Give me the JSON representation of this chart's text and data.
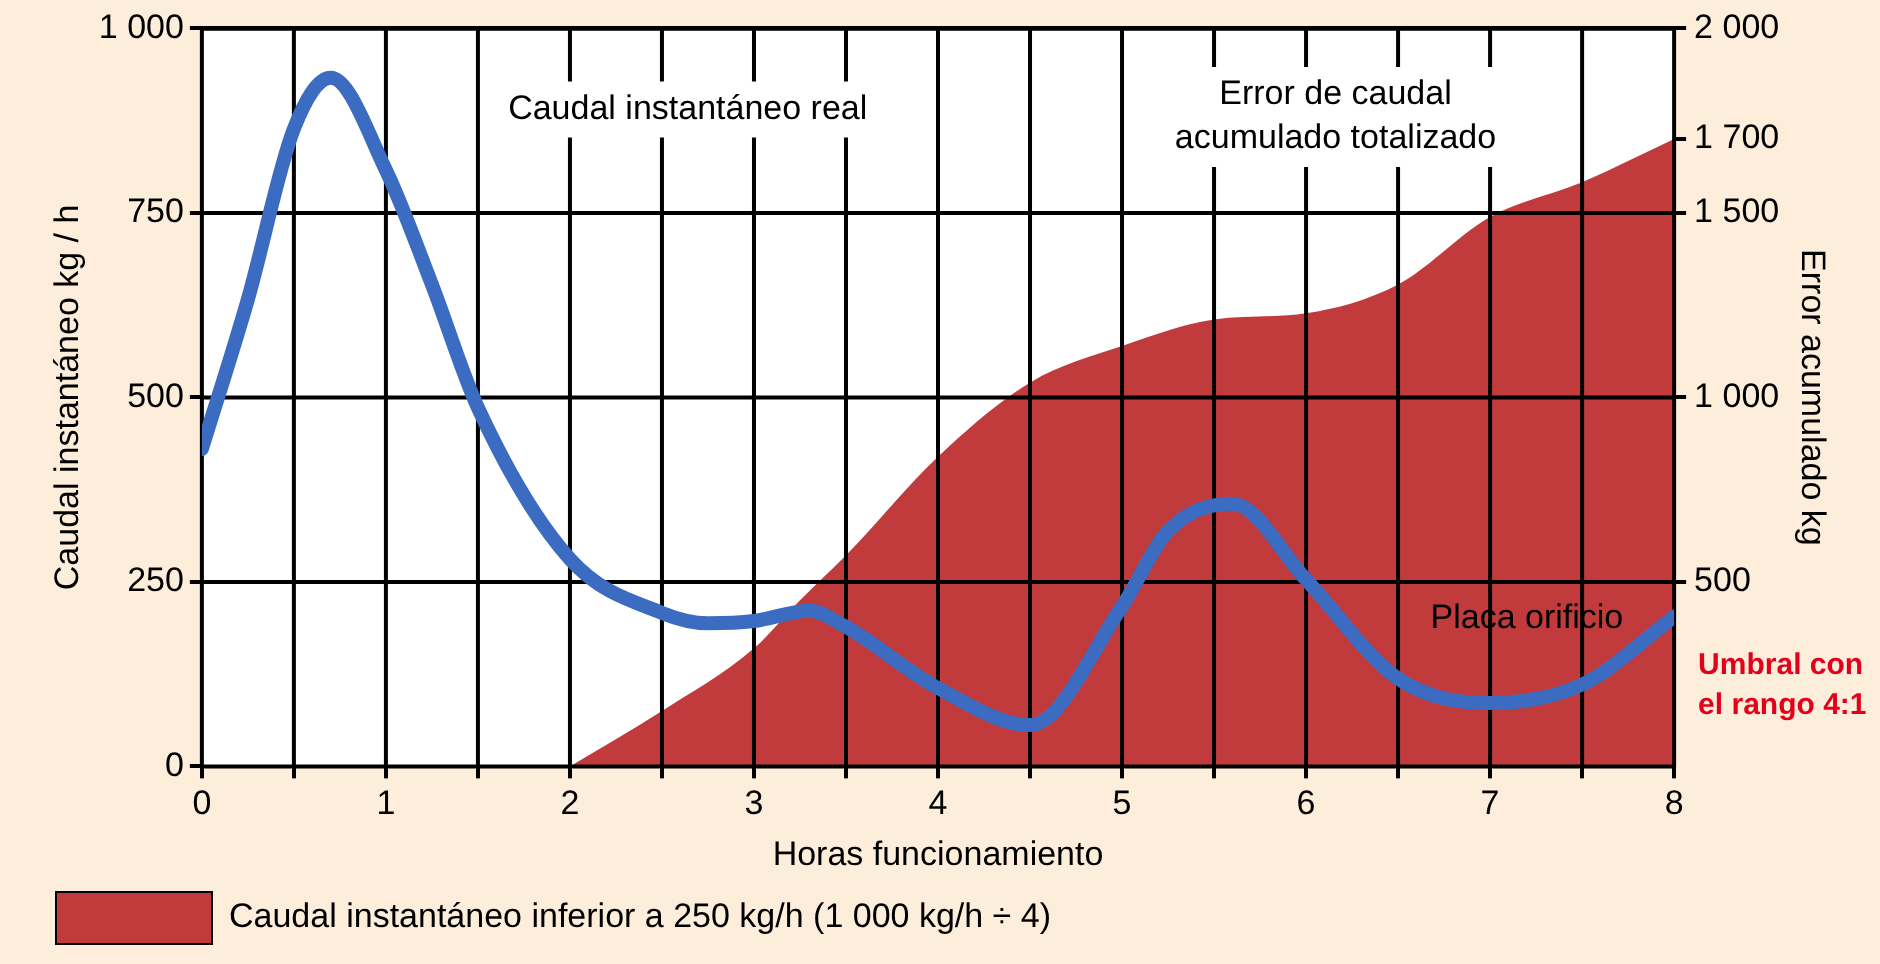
{
  "chart_data": {
    "type": "line",
    "xlabel": "Horas funcionamiento",
    "ylabel": "Caudal instantáneo kg / h",
    "y2label": "Error acumulado kg",
    "xlim": [
      0,
      8
    ],
    "xticks": [
      0,
      {
        "value": 0.5,
        "label": null
      },
      1,
      {
        "value": 1.5,
        "label": null
      },
      2,
      {
        "value": 2.5,
        "label": null
      },
      3,
      {
        "value": 3.5,
        "label": null
      },
      4,
      {
        "value": 4.5,
        "label": null
      },
      5,
      {
        "value": 5.5,
        "label": null
      },
      6,
      {
        "value": 6.5,
        "label": null
      },
      7,
      {
        "value": 7.5,
        "label": null
      },
      8
    ],
    "ylim": [
      0,
      1000
    ],
    "yticks": [
      0,
      250,
      500,
      750,
      {
        "value": 1000,
        "label": "1 000"
      }
    ],
    "y2lim": [
      0,
      2000
    ],
    "y2ticks": [
      500,
      {
        "value": 1000,
        "label": "1 000"
      },
      {
        "value": 1500,
        "label": "1 500"
      },
      {
        "value": 1700,
        "label": "1 700"
      },
      {
        "value": 2000,
        "label": "2 000"
      }
    ],
    "grid": true,
    "legend": "bottom",
    "marker": "none",
    "line_style": "solid",
    "series": [
      {
        "color": "#3b6cc1",
        "x": [
          0,
          0.25,
          0.5,
          0.7,
          1,
          1.25,
          1.5,
          2,
          2.5,
          2.75,
          3,
          3.3,
          3.5,
          4,
          4.5,
          5,
          5.25,
          5.6,
          6,
          6.5,
          7,
          7.5,
          8
        ],
        "values": [
          430,
          633,
          864,
          933,
          808,
          653,
          486,
          281,
          208,
          194,
          197,
          211,
          189,
          106,
          56,
          217,
          319,
          356,
          253,
          119,
          86,
          111,
          203
        ]
      },
      {
        "type": "area",
        "axis": "y2",
        "name": "Caudal instantáneo inferior a 250 kg/h (1 000 kg/h ÷ 4)",
        "color": "#c13b3d",
        "x": [
          2,
          2.5,
          3,
          3.25,
          3.5,
          4,
          4.5,
          5,
          5.5,
          6,
          6.5,
          7,
          7.5,
          8
        ],
        "values": [
          0,
          150,
          320,
          450,
          572,
          839,
          1040,
          1139,
          1211,
          1228,
          1306,
          1489,
          1583,
          1700
        ]
      }
    ],
    "annotations": [
      "Caudal instantáneo real",
      "Error de caudal acumulado totalizado",
      "Placa orificio",
      "Umbral con el rango 4:1"
    ]
  }
}
